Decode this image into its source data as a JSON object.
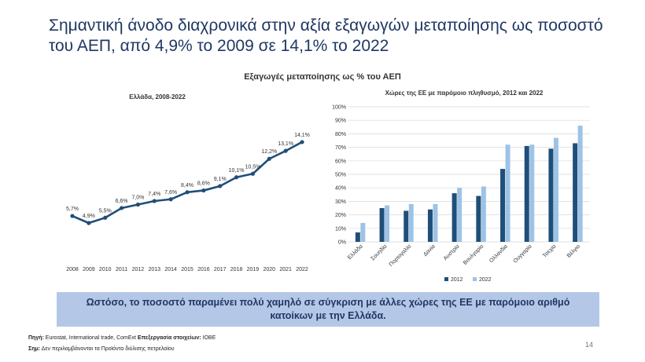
{
  "title": "Σημαντική άνοδο διαχρονικά στην αξία εξαγωγών μεταποίησης ως ποσοστό του ΑΕΠ, από 4,9% το 2009 σε 14,1% το 2022",
  "subtitle": "Εξαγωγές μεταποίησης ως % του ΑΕΠ",
  "chart_data": [
    {
      "type": "line",
      "title": "Ελλάδα, 2008-2022",
      "x": [
        "2008",
        "2009",
        "2010",
        "2011",
        "2012",
        "2013",
        "2014",
        "2015",
        "2016",
        "2017",
        "2018",
        "2019",
        "2020",
        "2021",
        "2022"
      ],
      "series": [
        {
          "values": [
            5.7,
            4.9,
            5.5,
            6.6,
            7.0,
            7.4,
            7.6,
            8.4,
            8.6,
            9.1,
            10.1,
            10.5,
            12.2,
            13.1,
            14.1
          ],
          "labels": [
            "5,7%",
            "4,9%",
            "5,5%",
            "6,6%",
            "7,0%",
            "7,4%",
            "7,6%",
            "8,4%",
            "8,6%",
            "9,1%",
            "10,1%",
            "10,5%",
            "12,2%",
            "13,1%",
            "14,1%"
          ],
          "color": "#1f4e79"
        }
      ],
      "xlabel": "",
      "ylabel": "",
      "grid": false
    },
    {
      "type": "bar",
      "title": "Χώρες της ΕΕ με παρόμοιο πληθυσμό, 2012 και 2022",
      "categories": [
        "Ελλάδα",
        "Σουηδία",
        "Πορτογαλία",
        "Δανία",
        "Αυστρία",
        "Βουλγαρία",
        "Ολλανδία",
        "Ουγγαρία",
        "Τσεχία",
        "Βέλγιο"
      ],
      "series": [
        {
          "name": "2012",
          "values": [
            7,
            25,
            23,
            24,
            36,
            34,
            54,
            71,
            69,
            73
          ],
          "color": "#1f4e79"
        },
        {
          "name": "2022",
          "values": [
            14,
            27,
            28,
            28,
            40,
            41,
            72,
            72,
            77,
            86
          ],
          "color": "#9dc3e6"
        }
      ],
      "y_ticks": [
        "0%",
        "10%",
        "20%",
        "30%",
        "40%",
        "50%",
        "60%",
        "70%",
        "80%",
        "90%",
        "100%"
      ],
      "ylim": [
        0,
        100
      ],
      "legend": "bottom",
      "grid": true
    }
  ],
  "banner": "Ωστόσο, το ποσοστό παραμένει πολύ χαμηλό σε σύγκριση με άλλες χώρες της ΕΕ με παρόμοιο αριθμό κατοίκων με την Ελλάδα.",
  "source": {
    "label1": "Πηγή:",
    "text1": " Eurostat, International trade, ComExt ",
    "label2": "Επεξεργασία στοιχείων:",
    "text2": " ΙΟΒΕ",
    "label3": "Σημ:",
    "text3": " Δεν περιλαμβάνονται τα Προϊόντα διύλισης πετρελαίου"
  },
  "page_number": "14"
}
